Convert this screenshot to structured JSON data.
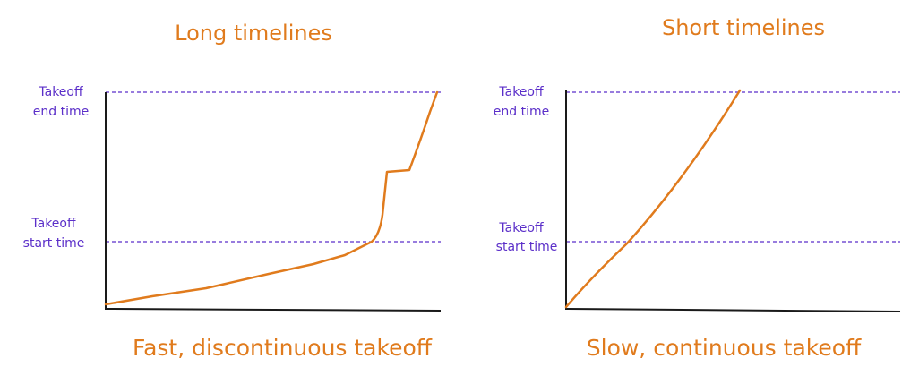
{
  "panels": [
    {
      "title": "Long timelines",
      "caption": "Fast, discontinuous takeoff",
      "levels": [
        [
          "Takeoff",
          "end time"
        ],
        [
          "Takeoff",
          "start time"
        ]
      ]
    },
    {
      "title": "Short timelines",
      "caption": "Slow, continuous takeoff",
      "levels": [
        [
          "Takeoff",
          "end time"
        ],
        [
          "Takeoff",
          "start time"
        ]
      ]
    }
  ]
}
